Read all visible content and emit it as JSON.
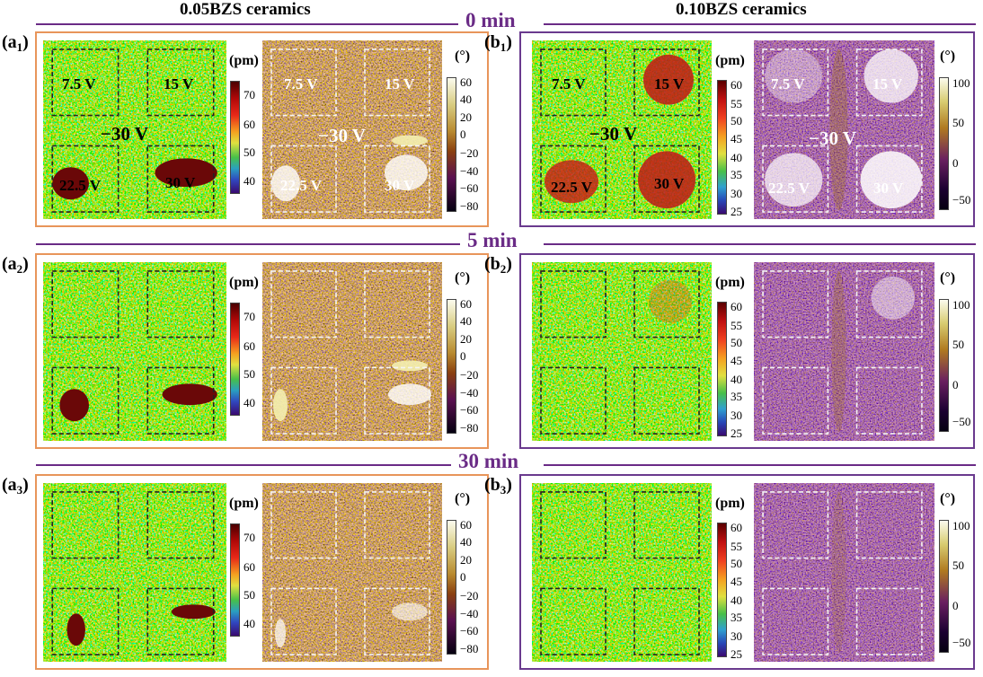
{
  "headers": {
    "left": "0.05BZS ceramics",
    "right": "0.10BZS ceramics"
  },
  "times": [
    "0 min",
    "5 min",
    "30 min"
  ],
  "panel_labels": {
    "a": [
      "a",
      "1",
      "a",
      "2",
      "a",
      "3"
    ],
    "b": [
      "b",
      "1",
      "b",
      "2",
      "b",
      "3"
    ]
  },
  "voltages": {
    "v1": "7.5 V",
    "v2": "15 V",
    "v3": "22.5 V",
    "v4": "30 V",
    "center": "−30 V"
  },
  "units": {
    "amplitude": "(pm)",
    "phase": "(°)"
  },
  "colorbars": {
    "a_amp_ticks": [
      "70",
      "60",
      "50",
      "40"
    ],
    "a_phase_ticks": [
      "60",
      "40",
      "20",
      "0",
      "−20",
      "−40",
      "−60",
      "−80"
    ],
    "b_amp_ticks": [
      "60",
      "55",
      "50",
      "45",
      "40",
      "35",
      "30",
      "25"
    ],
    "b_phase_ticks": [
      "100",
      "50",
      "0",
      "−50"
    ]
  },
  "colors": {
    "frame_a": "#e8955a",
    "frame_b": "#6a3a8e",
    "time_text": "#6a2b86"
  }
}
